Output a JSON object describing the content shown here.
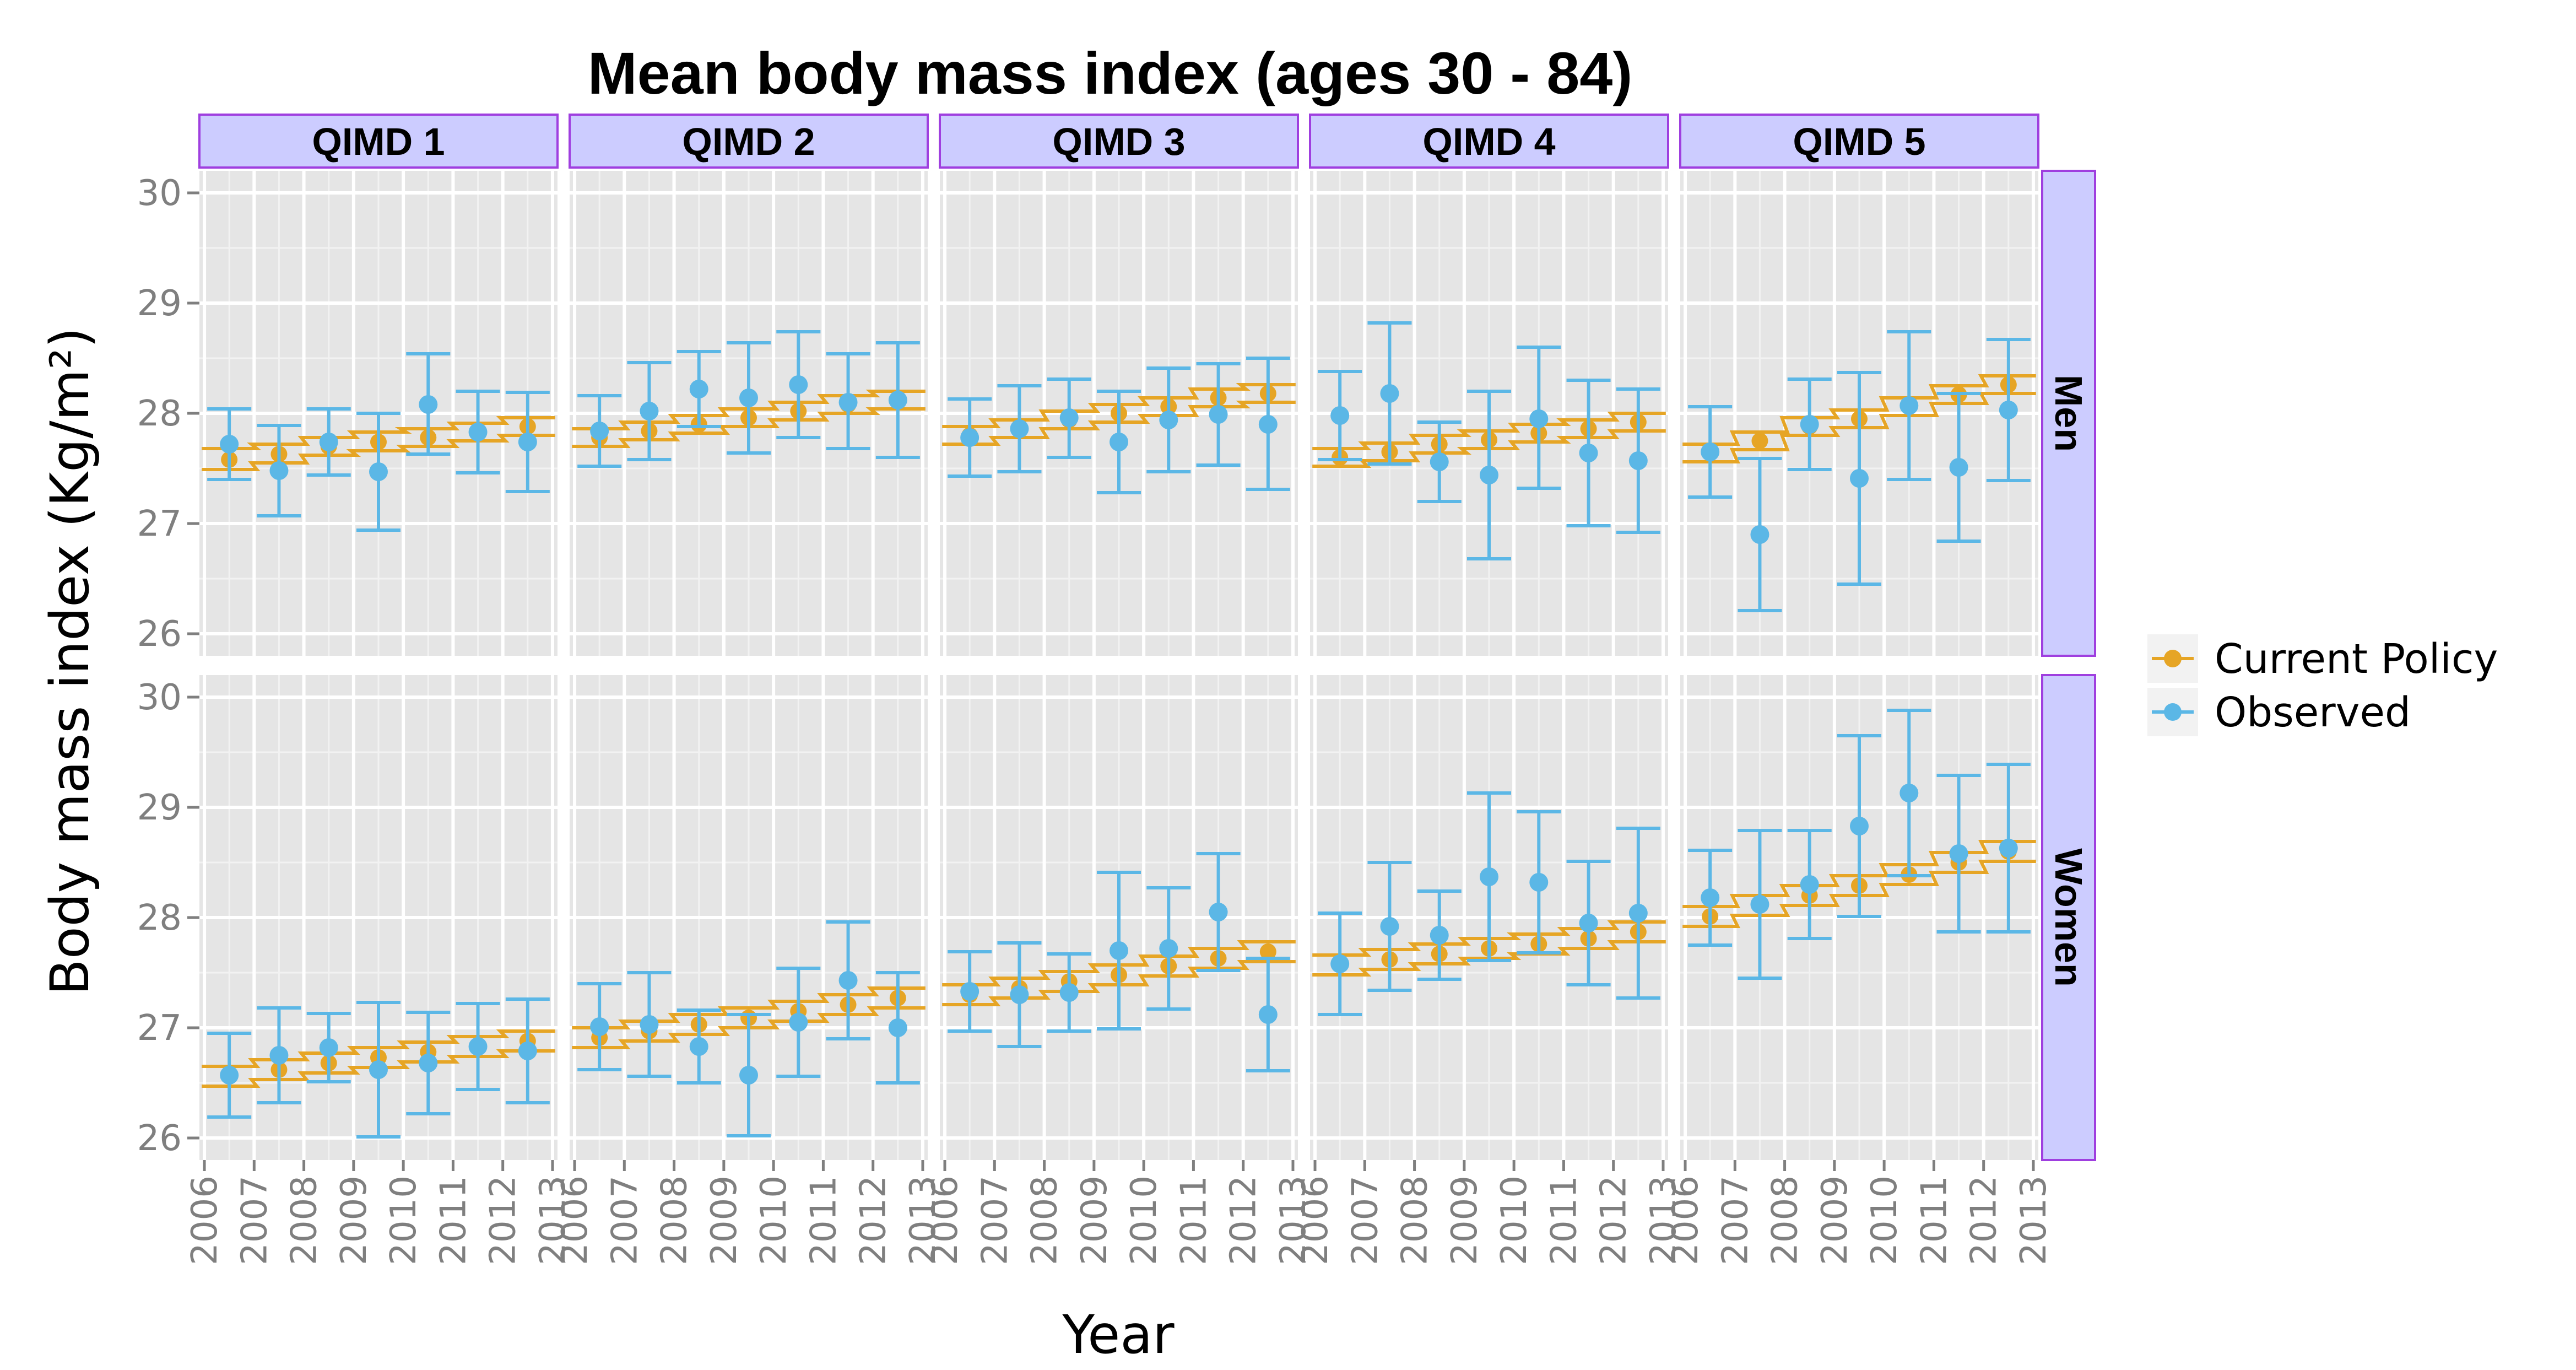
{
  "chart_data": {
    "type": "scatter",
    "title": "Mean body mass index (ages 30 - 84)",
    "xlabel": "Year",
    "ylabel": "Body mass index (Kg/m²)",
    "ylim": [
      25.8,
      30.2
    ],
    "y_ticks": [
      26,
      27,
      28,
      29,
      30
    ],
    "x_ticks": [
      "2006",
      "2007",
      "2008",
      "2009",
      "2010",
      "2011",
      "2012",
      "2013"
    ],
    "columns": [
      "QIMD 1",
      "QIMD 2",
      "QIMD 3",
      "QIMD 4",
      "QIMD 5"
    ],
    "rows": [
      "Men",
      "Women"
    ],
    "grid": true,
    "legend_position": "right",
    "legend": [
      {
        "name": "Current Policy",
        "color": "#E6A525"
      },
      {
        "name": "Observed",
        "color": "#5BB7E6"
      }
    ],
    "years": [
      2006.5,
      2007.5,
      2008.5,
      2009.5,
      2010.5,
      2011.5,
      2012.5
    ],
    "panels": [
      {
        "row": "Men",
        "col": "QIMD 1",
        "current_policy": {
          "mean": [
            27.58,
            27.63,
            27.7,
            27.74,
            27.78,
            27.83,
            27.88
          ],
          "lower": [
            27.49,
            27.55,
            27.62,
            27.66,
            27.7,
            27.75,
            27.8
          ],
          "upper": [
            27.68,
            27.72,
            27.78,
            27.83,
            27.86,
            27.91,
            27.96
          ]
        },
        "observed": {
          "mean": [
            27.72,
            27.48,
            27.74,
            27.47,
            28.08,
            27.83,
            27.74
          ],
          "lower": [
            27.4,
            27.07,
            27.44,
            26.94,
            27.63,
            27.46,
            27.29
          ],
          "upper": [
            28.04,
            27.89,
            28.04,
            28.0,
            28.54,
            28.2,
            28.19
          ]
        }
      },
      {
        "row": "Men",
        "col": "QIMD 2",
        "current_policy": {
          "mean": [
            27.78,
            27.84,
            27.9,
            27.96,
            28.02,
            28.08,
            28.12
          ],
          "lower": [
            27.7,
            27.76,
            27.82,
            27.88,
            27.94,
            28.0,
            28.04
          ],
          "upper": [
            27.86,
            27.92,
            27.98,
            28.04,
            28.1,
            28.16,
            28.2
          ]
        },
        "observed": {
          "mean": [
            27.84,
            28.02,
            28.22,
            28.14,
            28.26,
            28.1,
            28.12
          ],
          "lower": [
            27.52,
            27.58,
            27.88,
            27.64,
            27.78,
            27.68,
            27.6
          ],
          "upper": [
            28.16,
            28.46,
            28.56,
            28.64,
            28.74,
            28.54,
            28.64
          ]
        }
      },
      {
        "row": "Men",
        "col": "QIMD 3",
        "current_policy": {
          "mean": [
            27.8,
            27.86,
            27.94,
            28.0,
            28.06,
            28.14,
            28.18
          ],
          "lower": [
            27.72,
            27.78,
            27.86,
            27.92,
            27.98,
            28.06,
            28.1
          ],
          "upper": [
            27.88,
            27.94,
            28.02,
            28.08,
            28.14,
            28.22,
            28.26
          ]
        },
        "observed": {
          "mean": [
            27.78,
            27.86,
            27.96,
            27.74,
            27.94,
            27.99,
            27.9
          ],
          "lower": [
            27.43,
            27.47,
            27.6,
            27.28,
            27.47,
            27.53,
            27.31
          ],
          "upper": [
            28.13,
            28.25,
            28.31,
            28.2,
            28.41,
            28.45,
            28.5
          ]
        }
      },
      {
        "row": "Men",
        "col": "QIMD 4",
        "current_policy": {
          "mean": [
            27.6,
            27.65,
            27.72,
            27.76,
            27.82,
            27.86,
            27.92
          ],
          "lower": [
            27.52,
            27.57,
            27.64,
            27.68,
            27.74,
            27.78,
            27.84
          ],
          "upper": [
            27.68,
            27.73,
            27.8,
            27.84,
            27.9,
            27.94,
            28.0
          ]
        },
        "observed": {
          "mean": [
            27.98,
            28.18,
            27.56,
            27.44,
            27.95,
            27.64,
            27.57
          ],
          "lower": [
            27.58,
            27.54,
            27.2,
            26.68,
            27.32,
            26.98,
            26.92
          ],
          "upper": [
            28.38,
            28.82,
            27.92,
            28.2,
            28.6,
            28.3,
            28.22
          ]
        }
      },
      {
        "row": "Men",
        "col": "QIMD 5",
        "current_policy": {
          "mean": [
            27.64,
            27.75,
            27.88,
            27.95,
            28.06,
            28.17,
            28.26
          ],
          "lower": [
            27.56,
            27.67,
            27.8,
            27.87,
            27.98,
            28.09,
            28.18
          ],
          "upper": [
            27.72,
            27.83,
            27.96,
            28.03,
            28.14,
            28.25,
            28.34
          ]
        },
        "observed": {
          "mean": [
            27.65,
            26.9,
            27.9,
            27.41,
            28.07,
            27.51,
            28.03
          ],
          "lower": [
            27.24,
            26.21,
            27.49,
            26.45,
            27.4,
            26.84,
            27.39
          ],
          "upper": [
            28.06,
            27.59,
            28.31,
            28.37,
            28.74,
            28.18,
            28.67
          ]
        }
      },
      {
        "row": "Women",
        "col": "QIMD 1",
        "current_policy": {
          "mean": [
            26.56,
            26.62,
            26.68,
            26.73,
            26.78,
            26.83,
            26.88
          ],
          "lower": [
            26.47,
            26.53,
            26.59,
            26.64,
            26.69,
            26.74,
            26.79
          ],
          "upper": [
            26.65,
            26.71,
            26.77,
            26.82,
            26.87,
            26.92,
            26.97
          ]
        },
        "observed": {
          "mean": [
            26.57,
            26.75,
            26.82,
            26.62,
            26.68,
            26.83,
            26.79
          ],
          "lower": [
            26.19,
            26.32,
            26.51,
            26.01,
            26.22,
            26.44,
            26.32
          ],
          "upper": [
            26.95,
            27.18,
            27.13,
            27.23,
            27.14,
            27.22,
            27.26
          ]
        }
      },
      {
        "row": "Women",
        "col": "QIMD 2",
        "current_policy": {
          "mean": [
            26.91,
            26.97,
            27.03,
            27.09,
            27.15,
            27.21,
            27.27
          ],
          "lower": [
            26.82,
            26.88,
            26.94,
            27.0,
            27.06,
            27.12,
            27.18
          ],
          "upper": [
            27.0,
            27.06,
            27.12,
            27.18,
            27.24,
            27.3,
            27.36
          ]
        },
        "observed": {
          "mean": [
            27.01,
            27.03,
            26.83,
            26.57,
            27.05,
            27.43,
            27.0
          ],
          "lower": [
            26.62,
            26.56,
            26.5,
            26.02,
            26.56,
            26.9,
            26.5
          ],
          "upper": [
            27.4,
            27.5,
            27.16,
            27.12,
            27.54,
            27.96,
            27.5
          ]
        }
      },
      {
        "row": "Women",
        "col": "QIMD 3",
        "current_policy": {
          "mean": [
            27.3,
            27.36,
            27.42,
            27.48,
            27.56,
            27.63,
            27.69
          ],
          "lower": [
            27.21,
            27.27,
            27.33,
            27.39,
            27.47,
            27.54,
            27.6
          ],
          "upper": [
            27.39,
            27.45,
            27.51,
            27.57,
            27.65,
            27.72,
            27.78
          ]
        },
        "observed": {
          "mean": [
            27.33,
            27.3,
            27.32,
            27.7,
            27.72,
            28.05,
            27.12
          ],
          "lower": [
            26.97,
            26.83,
            26.97,
            26.99,
            27.17,
            27.52,
            26.61
          ],
          "upper": [
            27.69,
            27.77,
            27.67,
            28.41,
            28.27,
            28.58,
            27.63
          ]
        }
      },
      {
        "row": "Women",
        "col": "QIMD 4",
        "current_policy": {
          "mean": [
            27.57,
            27.62,
            27.67,
            27.72,
            27.76,
            27.81,
            27.87
          ],
          "lower": [
            27.48,
            27.53,
            27.58,
            27.63,
            27.67,
            27.72,
            27.78
          ],
          "upper": [
            27.66,
            27.71,
            27.76,
            27.81,
            27.85,
            27.9,
            27.96
          ]
        },
        "observed": {
          "mean": [
            27.58,
            27.92,
            27.84,
            28.37,
            28.32,
            27.95,
            28.04
          ],
          "lower": [
            27.12,
            27.34,
            27.44,
            27.61,
            27.68,
            27.39,
            27.27
          ],
          "upper": [
            28.04,
            28.5,
            28.24,
            29.13,
            28.96,
            28.51,
            28.81
          ]
        }
      },
      {
        "row": "Women",
        "col": "QIMD 5",
        "current_policy": {
          "mean": [
            28.01,
            28.11,
            28.2,
            28.29,
            28.39,
            28.5,
            28.6
          ],
          "lower": [
            27.92,
            28.02,
            28.11,
            28.2,
            28.3,
            28.41,
            28.51
          ],
          "upper": [
            28.1,
            28.2,
            28.29,
            28.38,
            28.48,
            28.59,
            28.69
          ]
        },
        "observed": {
          "mean": [
            28.18,
            28.12,
            28.3,
            28.83,
            29.13,
            28.58,
            28.63
          ],
          "lower": [
            27.75,
            27.45,
            27.81,
            28.01,
            28.38,
            27.87,
            27.87
          ],
          "upper": [
            28.61,
            28.79,
            28.79,
            29.65,
            29.88,
            29.29,
            29.39
          ]
        }
      }
    ]
  }
}
